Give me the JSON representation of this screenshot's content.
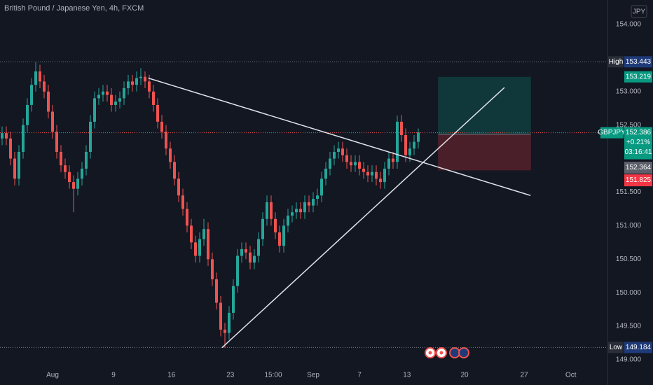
{
  "chart_data": {
    "type": "candlestick",
    "title": "British Pound / Japanese Yen, 4h, FXCM",
    "currency": "JPY",
    "symbol": "GBPJPY",
    "change": "+0.21%",
    "countdown": "03:16:41",
    "up_color": "#26a69a",
    "down_color": "#ef5350",
    "xlim": [
      -0.5,
      144
    ],
    "ylim": [
      148.624,
      154.365
    ],
    "xticks": [
      {
        "value": 12,
        "label": "Aug"
      },
      {
        "value": 26.5,
        "label": "9"
      },
      {
        "value": 40.3,
        "label": "16"
      },
      {
        "value": 54.3,
        "label": "23"
      },
      {
        "value": 64.5,
        "label": "15:00"
      },
      {
        "value": 74,
        "label": "Sep"
      },
      {
        "value": 85,
        "label": "7"
      },
      {
        "value": 96.3,
        "label": "13"
      },
      {
        "value": 110,
        "label": "20"
      },
      {
        "value": 124.2,
        "label": "27"
      },
      {
        "value": 135.3,
        "label": "Oct"
      }
    ],
    "yticks": [
      {
        "value": 154,
        "label": "154.000"
      },
      {
        "value": 153,
        "label": "153.000"
      },
      {
        "value": 152.5,
        "label": "152.500"
      },
      {
        "value": 151.5,
        "label": "151.500"
      },
      {
        "value": 151,
        "label": "151.000"
      },
      {
        "value": 150.5,
        "label": "150.500"
      },
      {
        "value": 150,
        "label": "150.000"
      },
      {
        "value": 149.5,
        "label": "149.500"
      },
      {
        "value": 149,
        "label": "149.000"
      }
    ],
    "ohlc": [
      [
        152.3,
        152.48,
        152.2,
        152.38
      ],
      [
        152.38,
        152.48,
        152.2,
        152.3
      ],
      [
        152.3,
        152.4,
        151.9,
        152.0
      ],
      [
        152.0,
        152.1,
        151.6,
        151.7
      ],
      [
        151.7,
        152.2,
        151.6,
        152.1
      ],
      [
        152.1,
        152.6,
        152.0,
        152.5
      ],
      [
        152.5,
        152.9,
        152.4,
        152.8
      ],
      [
        152.8,
        153.2,
        152.7,
        153.1
      ],
      [
        153.1,
        153.44,
        153.0,
        153.3
      ],
      [
        153.3,
        153.4,
        153.05,
        153.15
      ],
      [
        153.15,
        153.25,
        152.9,
        153.0
      ],
      [
        153.0,
        153.1,
        152.6,
        152.7
      ],
      [
        152.7,
        152.8,
        152.3,
        152.4
      ],
      [
        152.4,
        152.5,
        152.0,
        152.1
      ],
      [
        152.1,
        152.2,
        151.8,
        151.9
      ],
      [
        151.9,
        152.0,
        151.7,
        151.8
      ],
      [
        151.8,
        151.9,
        151.55,
        151.65
      ],
      [
        151.65,
        151.75,
        151.2,
        151.55
      ],
      [
        151.55,
        151.8,
        151.45,
        151.7
      ],
      [
        151.7,
        151.95,
        151.6,
        151.85
      ],
      [
        151.85,
        152.2,
        151.75,
        152.1
      ],
      [
        152.1,
        152.65,
        152.0,
        152.55
      ],
      [
        152.55,
        153.0,
        152.45,
        152.9
      ],
      [
        152.9,
        153.05,
        152.8,
        152.95
      ],
      [
        152.95,
        153.1,
        152.85,
        153.0
      ],
      [
        153.0,
        153.1,
        152.85,
        152.95
      ],
      [
        152.95,
        153.05,
        152.7,
        152.8
      ],
      [
        152.8,
        152.95,
        152.7,
        152.85
      ],
      [
        152.85,
        153.0,
        152.75,
        152.9
      ],
      [
        152.9,
        153.15,
        152.8,
        153.05
      ],
      [
        153.05,
        153.25,
        152.95,
        153.15
      ],
      [
        153.15,
        153.25,
        153.0,
        153.1
      ],
      [
        153.1,
        153.3,
        153.0,
        153.2
      ],
      [
        153.2,
        153.35,
        153.1,
        153.22
      ],
      [
        153.22,
        153.3,
        153.05,
        153.15
      ],
      [
        153.15,
        153.25,
        152.9,
        153.0
      ],
      [
        153.0,
        153.1,
        152.7,
        152.8
      ],
      [
        152.8,
        152.9,
        152.45,
        152.55
      ],
      [
        152.55,
        152.65,
        152.3,
        152.4
      ],
      [
        152.4,
        152.5,
        152.05,
        152.15
      ],
      [
        152.15,
        152.25,
        151.85,
        151.95
      ],
      [
        151.95,
        152.05,
        151.6,
        151.7
      ],
      [
        151.7,
        151.8,
        151.35,
        151.45
      ],
      [
        151.45,
        151.55,
        151.15,
        151.25
      ],
      [
        151.25,
        151.35,
        150.9,
        151.0
      ],
      [
        151.0,
        151.1,
        150.65,
        150.75
      ],
      [
        150.75,
        150.85,
        150.45,
        150.55
      ],
      [
        150.55,
        150.9,
        150.45,
        150.8
      ],
      [
        150.8,
        151.1,
        150.7,
        150.95
      ],
      [
        150.95,
        151.05,
        150.4,
        150.5
      ],
      [
        150.5,
        150.6,
        150.1,
        150.2
      ],
      [
        150.2,
        150.3,
        149.75,
        149.85
      ],
      [
        149.85,
        149.95,
        149.35,
        149.45
      ],
      [
        149.45,
        149.55,
        149.18,
        149.4
      ],
      [
        149.4,
        149.8,
        149.3,
        149.7
      ],
      [
        149.7,
        150.2,
        149.6,
        150.1
      ],
      [
        150.1,
        150.65,
        150.0,
        150.55
      ],
      [
        150.55,
        150.75,
        150.45,
        150.65
      ],
      [
        150.65,
        150.75,
        150.5,
        150.6
      ],
      [
        150.6,
        150.7,
        150.35,
        150.45
      ],
      [
        150.45,
        150.65,
        150.35,
        150.55
      ],
      [
        150.55,
        150.9,
        150.45,
        150.8
      ],
      [
        150.8,
        151.2,
        150.7,
        151.1
      ],
      [
        151.1,
        151.45,
        151.0,
        151.35
      ],
      [
        151.35,
        151.45,
        151.0,
        151.1
      ],
      [
        151.1,
        151.2,
        150.8,
        150.9
      ],
      [
        150.9,
        151.0,
        150.6,
        150.7
      ],
      [
        150.7,
        151.1,
        150.6,
        151.0
      ],
      [
        151.0,
        151.25,
        150.9,
        151.15
      ],
      [
        151.15,
        151.3,
        151.05,
        151.2
      ],
      [
        151.2,
        151.35,
        151.1,
        151.25
      ],
      [
        151.25,
        151.35,
        151.1,
        151.2
      ],
      [
        151.2,
        151.45,
        151.1,
        151.35
      ],
      [
        151.35,
        151.45,
        151.2,
        151.3
      ],
      [
        151.3,
        151.5,
        151.2,
        151.4
      ],
      [
        151.4,
        151.55,
        151.3,
        151.45
      ],
      [
        151.45,
        151.8,
        151.35,
        151.7
      ],
      [
        151.7,
        151.95,
        151.6,
        151.85
      ],
      [
        151.85,
        152.1,
        151.75,
        152.0
      ],
      [
        152.0,
        152.2,
        151.9,
        152.1
      ],
      [
        152.1,
        152.25,
        152.0,
        152.15
      ],
      [
        152.15,
        152.25,
        151.95,
        152.05
      ],
      [
        152.05,
        152.15,
        151.85,
        151.95
      ],
      [
        151.95,
        152.05,
        151.8,
        151.9
      ],
      [
        151.9,
        152.05,
        151.8,
        151.95
      ],
      [
        151.95,
        152.05,
        151.75,
        151.85
      ],
      [
        151.85,
        151.95,
        151.7,
        151.8
      ],
      [
        151.8,
        151.9,
        151.65,
        151.75
      ],
      [
        151.75,
        151.9,
        151.65,
        151.8
      ],
      [
        151.8,
        151.9,
        151.6,
        151.7
      ],
      [
        151.7,
        151.8,
        151.55,
        151.65
      ],
      [
        151.65,
        151.95,
        151.55,
        151.85
      ],
      [
        151.85,
        152.1,
        151.75,
        152.0
      ],
      [
        152.0,
        152.1,
        151.85,
        151.95
      ],
      [
        151.95,
        152.64,
        151.85,
        152.55
      ],
      [
        152.55,
        152.65,
        152.25,
        152.35
      ],
      [
        152.35,
        152.45,
        151.95,
        152.05
      ],
      [
        152.05,
        152.25,
        151.95,
        152.15
      ],
      [
        152.15,
        152.35,
        152.05,
        152.25
      ],
      [
        152.25,
        152.45,
        152.15,
        152.39
      ]
    ],
    "trendlines": [
      {
        "x": [
          34.8,
          125.7
        ],
        "y": [
          153.2,
          151.45
        ]
      },
      {
        "x": [
          52.3,
          119.5
        ],
        "y": [
          149.18,
          153.06
        ]
      }
    ],
    "position": {
      "x": [
        103.7,
        125.8
      ],
      "target": 153.219,
      "entry": 152.364,
      "stop": 151.825
    },
    "last": 152.386,
    "high_label": "High",
    "high": 153.443,
    "low_label": "Low",
    "low": 149.184
  }
}
